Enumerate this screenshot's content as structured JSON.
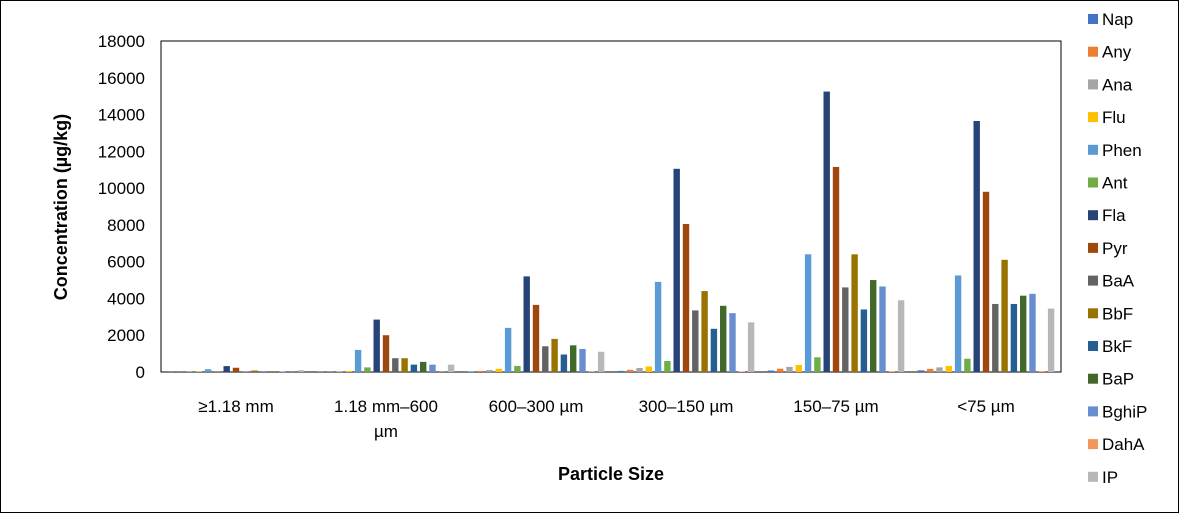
{
  "chart_data": {
    "type": "bar",
    "xlabel": "Particle Size",
    "ylabel": "Concentration (µg/kg)",
    "ylim": [
      0,
      18000
    ],
    "yticks": [
      0,
      2000,
      4000,
      6000,
      8000,
      10000,
      12000,
      14000,
      16000,
      18000
    ],
    "ytick_labels": [
      "0",
      "2000",
      "4000",
      "6000",
      "8000",
      "10000",
      "12000",
      "14000",
      "16000",
      "18000"
    ],
    "grid": false,
    "legend_position": "right",
    "categories": [
      "≥1.18 mm",
      "1.18 mm–600 µm",
      "600–300 µm",
      "300–150 µm",
      "150–75 µm",
      "<75 µm"
    ],
    "series": [
      {
        "name": "Nap",
        "color": "#4472C4",
        "values": [
          10,
          15,
          30,
          60,
          80,
          90
        ]
      },
      {
        "name": "Any",
        "color": "#ED7D31",
        "values": [
          5,
          10,
          60,
          120,
          180,
          170
        ]
      },
      {
        "name": "Ana",
        "color": "#A5A5A5",
        "values": [
          15,
          40,
          110,
          220,
          280,
          250
        ]
      },
      {
        "name": "Flu",
        "color": "#FFC000",
        "values": [
          20,
          60,
          170,
          300,
          380,
          330
        ]
      },
      {
        "name": "Phen",
        "color": "#5B9BD5",
        "values": [
          150,
          1200,
          2400,
          4900,
          6400,
          5250
        ]
      },
      {
        "name": "Ant",
        "color": "#70AD47",
        "values": [
          10,
          250,
          330,
          600,
          800,
          720
        ]
      },
      {
        "name": "Fla",
        "color": "#264478",
        "values": [
          320,
          2850,
          5200,
          11050,
          15250,
          13650
        ]
      },
      {
        "name": "Pyr",
        "color": "#9E480E",
        "values": [
          230,
          2000,
          3650,
          8050,
          11150,
          9800
        ]
      },
      {
        "name": "BaA",
        "color": "#636363",
        "values": [
          20,
          750,
          1400,
          3350,
          4600,
          3700
        ]
      },
      {
        "name": "BbF",
        "color": "#997300",
        "values": [
          80,
          750,
          1800,
          4400,
          6400,
          6100
        ]
      },
      {
        "name": "BkF",
        "color": "#255E91",
        "values": [
          15,
          400,
          950,
          2350,
          3400,
          3700
        ]
      },
      {
        "name": "BaP",
        "color": "#43682B",
        "values": [
          40,
          550,
          1450,
          3600,
          5000,
          4150
        ]
      },
      {
        "name": "BghiP",
        "color": "#698ED0",
        "values": [
          30,
          400,
          1250,
          3200,
          4650,
          4250
        ]
      },
      {
        "name": "DahA",
        "color": "#F1975A",
        "values": [
          5,
          10,
          20,
          30,
          40,
          40
        ]
      },
      {
        "name": "IP",
        "color": "#B7B7B7",
        "values": [
          100,
          400,
          1100,
          2700,
          3900,
          3450
        ]
      }
    ]
  }
}
